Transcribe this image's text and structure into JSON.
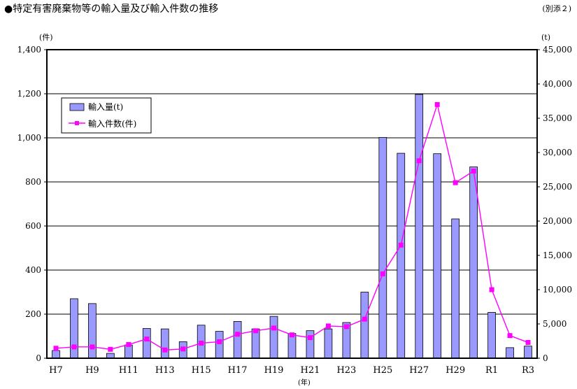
{
  "header": {
    "title": "●特定有害廃棄物等の輸入量及び輸入件数の推移",
    "annex": "(別添２)"
  },
  "chart_data": {
    "type": "bar+line",
    "categories": [
      "H7",
      "H8",
      "H9",
      "H10",
      "H11",
      "H12",
      "H13",
      "H14",
      "H15",
      "H16",
      "H17",
      "H18",
      "H19",
      "H20",
      "H21",
      "H22",
      "H23",
      "H24",
      "H25",
      "H26",
      "H27",
      "H28",
      "H29",
      "H30",
      "R1",
      "R2",
      "R3"
    ],
    "x_tick_labels": [
      "H7",
      "H9",
      "H11",
      "H13",
      "H15",
      "H17",
      "H19",
      "H21",
      "H23",
      "H25",
      "H27",
      "H29",
      "R1",
      "R3"
    ],
    "xlabel": "(年)",
    "y_left": {
      "unit_label": "(件)",
      "range": [
        0,
        1400
      ],
      "ticks": [
        "0",
        "200",
        "400",
        "600",
        "800",
        "1,000",
        "1,200",
        "1,400"
      ]
    },
    "y_right": {
      "unit_label": "(t)",
      "range": [
        0,
        45000
      ],
      "ticks": [
        "0",
        "5,000",
        "10,000",
        "15,000",
        "20,000",
        "25,000",
        "30,000",
        "35,000",
        "40,000",
        "45,000"
      ]
    },
    "grid": true,
    "legend_position": "top-left",
    "series": [
      {
        "name": "輸入量(t)",
        "type": "bar",
        "axis": "left",
        "color": "#9999ff",
        "values": [
          35,
          270,
          248,
          22,
          60,
          135,
          133,
          75,
          150,
          122,
          167,
          133,
          190,
          112,
          125,
          133,
          162,
          300,
          1002,
          930,
          1197,
          928,
          632,
          868,
          208,
          48,
          55
        ]
      },
      {
        "name": "輸入件数(件)",
        "type": "line",
        "axis": "right",
        "color": "#ff00ff",
        "values": [
          1450,
          1650,
          1650,
          1300,
          2000,
          2800,
          1200,
          1350,
          2200,
          2400,
          3500,
          4000,
          4400,
          3400,
          3000,
          4700,
          4600,
          5700,
          12300,
          16500,
          28800,
          37000,
          25600,
          27300,
          10000,
          3300,
          2300
        ]
      }
    ]
  }
}
